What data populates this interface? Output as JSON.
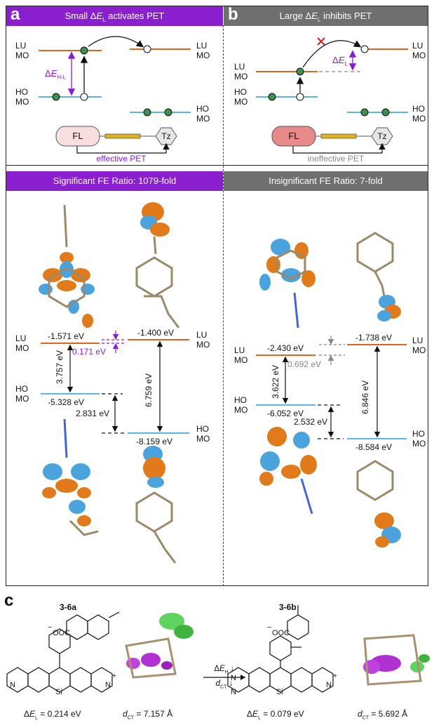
{
  "panel_a": {
    "letter": "a",
    "header_prefix": "Small Δ",
    "header_italic": "E",
    "header_sub": "L",
    "header_suffix": " activates PET",
    "lumo_label_1": "LU",
    "lumo_label_2": "MO",
    "homo_label_1": "HO",
    "homo_label_2": "MO",
    "gap_prefix": "Δ",
    "gap_italic": "E",
    "gap_sub": "H-L",
    "fl_label": "FL",
    "tz_label": "Tz",
    "pet_text": "effective PET"
  },
  "panel_b": {
    "letter": "b",
    "header_prefix": "Large Δ",
    "header_italic": "E",
    "header_sub": "L",
    "header_suffix": " inhibits PET",
    "lumo_label_1": "LU",
    "lumo_label_2": "MO",
    "homo_label_1": "HO",
    "homo_label_2": "MO",
    "gap_prefix": "Δ",
    "gap_italic": "E",
    "gap_sub": "L",
    "fl_label": "FL",
    "tz_label": "Tz",
    "pet_text": "ineffective PET"
  },
  "ratio_left": "Significant FE Ratio: 1079-fold",
  "ratio_right": "Insignificant FE Ratio: 7-fold",
  "energy_left": {
    "lumo_fl": "-1.571 eV",
    "lumo_tz": "-1.400 eV",
    "homo_fl": "-5.328 eV",
    "homo_tz": "-8.159 eV",
    "delta_lumo": "0.171 eV",
    "gap_fl": "3.757 eV",
    "delta_homo": "2.831 eV",
    "gap_tz": "6.759 eV"
  },
  "energy_right": {
    "lumo_fl": "-2.430 eV",
    "lumo_tz": "-1.738 eV",
    "homo_fl": "-6.052 eV",
    "homo_tz": "-8.584 eV",
    "delta_lumo": "0.692 eV",
    "gap_fl": "3.622 eV",
    "delta_homo": "2.532 eV",
    "gap_tz": "6.846 eV"
  },
  "mo_labels": {
    "lu": "LU",
    "ho": "HO",
    "mo": "MO"
  },
  "panel_c": {
    "letter": "c",
    "compound_a": "3-6a",
    "compound_b": "3-6b",
    "coo": "OOC",
    "minus": "−",
    "si": "Si",
    "n": "N",
    "plus": "+",
    "delta_el_prefix": "Δ",
    "delta_el_italic": "E",
    "delta_el_sub": "L",
    "delta_el_a_value": " = 0.214 eV",
    "delta_el_b_value": " = 0.079 eV",
    "dct_italic": "d",
    "dct_sub": "CT",
    "dct_a_value": " = 7.157 Å",
    "dct_b_value": " = 5.692 Å",
    "arrow_top_prefix": "Δ",
    "arrow_top_italic": "E",
    "arrow_top_sub": "H",
    "arrow_top_suffix": " ↓",
    "arrow_bot_italic": "d",
    "arrow_bot_sub": "CT",
    "arrow_bot_suffix": " ↓"
  },
  "colors": {
    "purple": "#8a1fd0",
    "gray_header": "#6f6f6f",
    "lumo_orange": "#e0641e",
    "homo_blue": "#5ab4e6",
    "orbital_orange": "#e07a1a",
    "orbital_blue": "#4aa3dd",
    "green_dot": "#3f8f4f",
    "red_cross": "#d42020",
    "fl_pink": "#f6c9c9",
    "bar_gold": "#e2b11c"
  }
}
